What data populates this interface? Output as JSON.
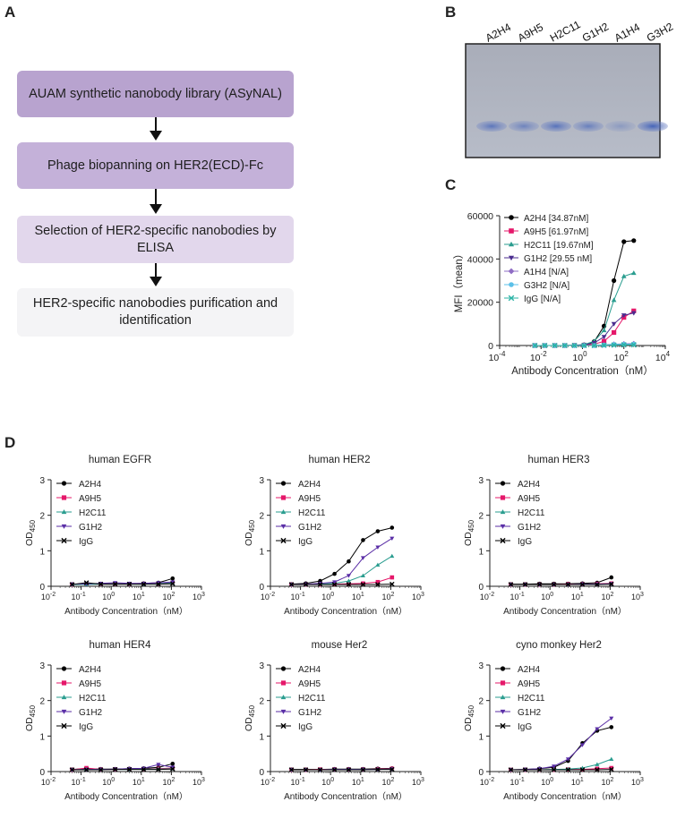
{
  "panelA": {
    "letter": "A",
    "steps": [
      {
        "text": "AUAM synthetic nanobody library (ASyNAL)",
        "color": "#b8a3cf"
      },
      {
        "text": "Phage biopanning on HER2(ECD)-Fc",
        "color": "#c4b1d9"
      },
      {
        "text": "Selection of HER2-specific nanobodies by ELISA",
        "color": "#e2d7ec"
      },
      {
        "text": "HER2-specific nanobodies purification and identification",
        "color": "#f4f4f6"
      }
    ]
  },
  "panelB": {
    "letter": "B",
    "lanes": [
      "A2H4",
      "A9H5",
      "H2C11",
      "G1H2",
      "A1H4",
      "G3H2"
    ],
    "band_intensity": [
      0.75,
      0.6,
      0.8,
      0.65,
      0.35,
      0.95
    ]
  },
  "panelC": {
    "letter": "C",
    "ylabel": "MFI（mean）",
    "xlabel": "Antibody Concentration（nM）",
    "yticks": [
      "0",
      "20000",
      "40000",
      "60000"
    ],
    "xtick_exponents": [
      "-4",
      "-2",
      "0",
      "2",
      "4"
    ],
    "legend": [
      {
        "label": "A2H4 [34.87nM]",
        "color": "#000000",
        "marker": "circle"
      },
      {
        "label": "A9H5 [61.97nM]",
        "color": "#e5186a",
        "marker": "square"
      },
      {
        "label": "H2C11 [19.67nM]",
        "color": "#2a9d8f",
        "marker": "triangle"
      },
      {
        "label": "G1H2 [29.55 nM]",
        "color": "#4b2d8f",
        "marker": "triangle-down"
      },
      {
        "label": "A1H4 [N/A]",
        "color": "#8e6cc4",
        "marker": "diamond"
      },
      {
        "label": "G3H2 [N/A]",
        "color": "#5bc0e8",
        "marker": "circle"
      },
      {
        "label": "IgG [N/A]",
        "color": "#2bb3a5",
        "marker": "x"
      }
    ]
  },
  "panelD": {
    "letter": "D",
    "ylabel_main": "OD",
    "ylabel_sub": "450",
    "xlabel": "Antibody Concentration（nM）",
    "yticks": [
      "0",
      "1",
      "2",
      "3"
    ],
    "xtick_exponents": [
      "-2",
      "-1",
      "0",
      "1",
      "2",
      "3"
    ],
    "legend": [
      {
        "label": "A2H4",
        "color": "#000000",
        "marker": "circle"
      },
      {
        "label": "A9H5",
        "color": "#e5186a",
        "marker": "square"
      },
      {
        "label": "H2C11",
        "color": "#2a9d8f",
        "marker": "triangle"
      },
      {
        "label": "G1H2",
        "color": "#5a2ea6",
        "marker": "triangle-down"
      },
      {
        "label": "IgG",
        "color": "#000000",
        "marker": "x"
      }
    ],
    "titles": [
      "human EGFR",
      "human HER2",
      "human HER3",
      "human HER4",
      "mouse Her2",
      "cyno monkey Her2"
    ]
  },
  "chart_data": [
    {
      "type": "scatter",
      "panel": "C",
      "xscale": "log",
      "xlim": [
        0.0001,
        10000
      ],
      "ylim": [
        0,
        60000
      ],
      "xlabel": "Antibody Concentration（nM）",
      "ylabel": "MFI（mean）",
      "x": [
        0.005,
        0.015,
        0.046,
        0.14,
        0.41,
        1.2,
        3.7,
        11,
        33,
        100,
        300
      ],
      "series": [
        {
          "name": "A2H4 [34.87nM]",
          "values": [
            0,
            0,
            0,
            0,
            100,
            300,
            1800,
            9000,
            30000,
            48000,
            48500
          ]
        },
        {
          "name": "A9H5 [61.97nM]",
          "values": [
            0,
            0,
            0,
            0,
            50,
            200,
            600,
            2000,
            6000,
            13000,
            16000
          ]
        },
        {
          "name": "H2C11 [19.67nM]",
          "values": [
            0,
            0,
            0,
            0,
            100,
            400,
            2000,
            7000,
            21000,
            32000,
            33500
          ]
        },
        {
          "name": "G1H2 [29.55 nM]",
          "values": [
            0,
            0,
            0,
            0,
            80,
            300,
            1200,
            4000,
            10000,
            14000,
            15000
          ]
        },
        {
          "name": "A1H4 [N/A]",
          "values": [
            0,
            0,
            0,
            0,
            0,
            0,
            0,
            300,
            600,
            800,
            900
          ]
        },
        {
          "name": "G3H2 [N/A]",
          "values": [
            0,
            0,
            0,
            0,
            0,
            0,
            0,
            200,
            500,
            600,
            700
          ]
        },
        {
          "name": "IgG [N/A]",
          "values": [
            0,
            0,
            0,
            0,
            0,
            0,
            0,
            100,
            200,
            300,
            300
          ]
        }
      ]
    },
    {
      "type": "line",
      "panel": "D",
      "title": "human EGFR",
      "xscale": "log",
      "xlim": [
        0.01,
        1000
      ],
      "ylim": [
        0,
        3
      ],
      "x": [
        0.05,
        0.15,
        0.45,
        1.35,
        4,
        12,
        37,
        110
      ],
      "series": [
        {
          "name": "A2H4",
          "values": [
            0.06,
            0.06,
            0.07,
            0.07,
            0.07,
            0.08,
            0.1,
            0.22
          ]
        },
        {
          "name": "A9H5",
          "values": [
            0.05,
            0.06,
            0.06,
            0.06,
            0.06,
            0.07,
            0.07,
            0.1
          ]
        },
        {
          "name": "H2C11",
          "values": [
            0.05,
            0.05,
            0.06,
            0.06,
            0.06,
            0.06,
            0.07,
            0.09
          ]
        },
        {
          "name": "G1H2",
          "values": [
            0.06,
            0.07,
            0.08,
            0.1,
            0.08,
            0.08,
            0.1,
            0.12
          ]
        },
        {
          "name": "IgG",
          "values": [
            0.05,
            0.1,
            0.06,
            0.06,
            0.06,
            0.06,
            0.06,
            0.07
          ]
        }
      ]
    },
    {
      "type": "line",
      "panel": "D",
      "title": "human HER2",
      "xscale": "log",
      "xlim": [
        0.01,
        1000
      ],
      "ylim": [
        0,
        3
      ],
      "x": [
        0.05,
        0.15,
        0.45,
        1.35,
        4,
        12,
        37,
        110
      ],
      "series": [
        {
          "name": "A2H4",
          "values": [
            0.06,
            0.08,
            0.15,
            0.35,
            0.7,
            1.3,
            1.55,
            1.65
          ]
        },
        {
          "name": "A9H5",
          "values": [
            0.05,
            0.05,
            0.05,
            0.06,
            0.07,
            0.08,
            0.12,
            0.25
          ]
        },
        {
          "name": "H2C11",
          "values": [
            0.05,
            0.05,
            0.06,
            0.08,
            0.15,
            0.3,
            0.6,
            0.85
          ]
        },
        {
          "name": "G1H2",
          "values": [
            0.05,
            0.06,
            0.08,
            0.12,
            0.3,
            0.8,
            1.1,
            1.35
          ]
        },
        {
          "name": "IgG",
          "values": [
            0.05,
            0.05,
            0.05,
            0.05,
            0.05,
            0.05,
            0.05,
            0.06
          ]
        }
      ]
    },
    {
      "type": "line",
      "panel": "D",
      "title": "human HER3",
      "xscale": "log",
      "xlim": [
        0.01,
        1000
      ],
      "ylim": [
        0,
        3
      ],
      "x": [
        0.05,
        0.15,
        0.45,
        1.35,
        4,
        12,
        37,
        110
      ],
      "series": [
        {
          "name": "A2H4",
          "values": [
            0.06,
            0.06,
            0.07,
            0.07,
            0.07,
            0.08,
            0.1,
            0.25
          ]
        },
        {
          "name": "A9H5",
          "values": [
            0.05,
            0.05,
            0.05,
            0.05,
            0.06,
            0.06,
            0.07,
            0.08
          ]
        },
        {
          "name": "H2C11",
          "values": [
            0.05,
            0.05,
            0.05,
            0.05,
            0.05,
            0.06,
            0.06,
            0.07
          ]
        },
        {
          "name": "G1H2",
          "values": [
            0.05,
            0.05,
            0.05,
            0.05,
            0.05,
            0.06,
            0.06,
            0.07
          ]
        },
        {
          "name": "IgG",
          "values": [
            0.05,
            0.05,
            0.05,
            0.05,
            0.05,
            0.05,
            0.05,
            0.06
          ]
        }
      ]
    },
    {
      "type": "line",
      "panel": "D",
      "title": "human HER4",
      "xscale": "log",
      "xlim": [
        0.01,
        1000
      ],
      "ylim": [
        0,
        3
      ],
      "x": [
        0.05,
        0.15,
        0.45,
        1.35,
        4,
        12,
        37,
        110
      ],
      "series": [
        {
          "name": "A2H4",
          "values": [
            0.06,
            0.08,
            0.07,
            0.07,
            0.08,
            0.09,
            0.12,
            0.22
          ]
        },
        {
          "name": "A9H5",
          "values": [
            0.05,
            0.1,
            0.06,
            0.06,
            0.07,
            0.07,
            0.08,
            0.1
          ]
        },
        {
          "name": "H2C11",
          "values": [
            0.05,
            0.06,
            0.06,
            0.06,
            0.06,
            0.07,
            0.07,
            0.08
          ]
        },
        {
          "name": "G1H2",
          "values": [
            0.05,
            0.06,
            0.06,
            0.07,
            0.08,
            0.09,
            0.2,
            0.12
          ]
        },
        {
          "name": "IgG",
          "values": [
            0.05,
            0.05,
            0.05,
            0.06,
            0.06,
            0.06,
            0.06,
            0.07
          ]
        }
      ]
    },
    {
      "type": "line",
      "panel": "D",
      "title": "mouse Her2",
      "xscale": "log",
      "xlim": [
        0.01,
        1000
      ],
      "ylim": [
        0,
        3
      ],
      "x": [
        0.05,
        0.15,
        0.45,
        1.35,
        4,
        12,
        37,
        110
      ],
      "series": [
        {
          "name": "A2H4",
          "values": [
            0.06,
            0.06,
            0.06,
            0.07,
            0.07,
            0.07,
            0.08,
            0.09
          ]
        },
        {
          "name": "A9H5",
          "values": [
            0.05,
            0.05,
            0.06,
            0.06,
            0.06,
            0.06,
            0.07,
            0.08
          ]
        },
        {
          "name": "H2C11",
          "values": [
            0.05,
            0.05,
            0.05,
            0.06,
            0.06,
            0.06,
            0.06,
            0.07
          ]
        },
        {
          "name": "G1H2",
          "values": [
            0.05,
            0.05,
            0.05,
            0.06,
            0.06,
            0.06,
            0.06,
            0.07
          ]
        },
        {
          "name": "IgG",
          "values": [
            0.05,
            0.05,
            0.05,
            0.05,
            0.05,
            0.05,
            0.06,
            0.06
          ]
        }
      ]
    },
    {
      "type": "line",
      "panel": "D",
      "title": "cyno monkey Her2",
      "xscale": "log",
      "xlim": [
        0.01,
        1000
      ],
      "ylim": [
        0,
        3
      ],
      "x": [
        0.05,
        0.15,
        0.45,
        1.35,
        4,
        12,
        37,
        110
      ],
      "series": [
        {
          "name": "A2H4",
          "values": [
            0.05,
            0.06,
            0.08,
            0.12,
            0.3,
            0.8,
            1.15,
            1.25
          ]
        },
        {
          "name": "A9H5",
          "values": [
            0.05,
            0.05,
            0.05,
            0.05,
            0.06,
            0.06,
            0.08,
            0.1
          ]
        },
        {
          "name": "H2C11",
          "values": [
            0.05,
            0.05,
            0.05,
            0.06,
            0.07,
            0.1,
            0.2,
            0.35
          ]
        },
        {
          "name": "G1H2",
          "values": [
            0.05,
            0.06,
            0.08,
            0.15,
            0.35,
            0.75,
            1.2,
            1.5
          ]
        },
        {
          "name": "IgG",
          "values": [
            0.05,
            0.05,
            0.05,
            0.05,
            0.05,
            0.05,
            0.05,
            0.06
          ]
        }
      ]
    }
  ]
}
